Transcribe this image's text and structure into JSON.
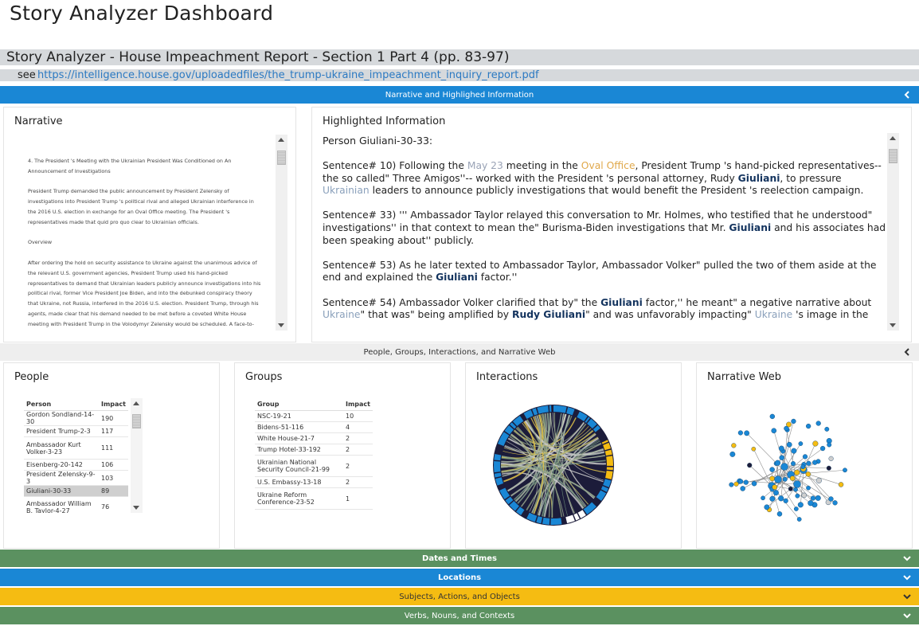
{
  "app": {
    "title": "Story Analyzer Dashboard"
  },
  "story": {
    "title": "Story Analyzer - House Impeachment Report - Section 1 Part 4 (pp. 83-97)",
    "see_label": "see",
    "link": "https://intelligence.house.gov/uploadedfiles/the_trump-ukraine_impeachment_inquiry_report.pdf"
  },
  "sections": {
    "narrative_highlight": "Narrative and Highlighed Information",
    "people_groups": "People, Groups, Interactions, and Narrative Web",
    "dates": "Dates and Times",
    "locations": "Locations",
    "subjects": "Subjects, Actions, and Objects",
    "verbs": "Verbs, Nouns, and Contexts"
  },
  "narrative": {
    "title": "Narrative",
    "paragraphs": [
      "4. The President 's Meeting with the Ukrainian President Was Conditioned on An Announcement of Investigations",
      "President Trump demanded the public announcement by President Zelensky of investigations into President Trump 's political rival and alleged Ukrainian interference in the 2016 U.S. election in exchange for an Oval Office meeting. The President 's representatives made that quid pro quo clear to Ukrainian officials.",
      "Overview",
      "After ordering the hold on security assistance to Ukraine against the unanimous advice of the relevant U.S. government agencies, President Trump used his hand-picked representatives to demand that Ukrainian leaders publicly announce investigations into his political rival, former Vice President Joe Biden, and into the debunked conspiracy theory that Ukraine, not Russia, interfered in the 2016 U.S. election. President Trump, through his agents, made clear that his demand needed to be met before a coveted White House meeting with President Trump in the Volodymyr Zelensky would be scheduled. A face-to-face meeting with President Trump in the"
    ]
  },
  "highlighted": {
    "title": "Highlighted Information",
    "person_line": "Person Giuliani-30-33:",
    "s1": {
      "a": "Sentence# 10) Following the ",
      "date": "May 23",
      "b": " meeting in the ",
      "loc": "Oval Office",
      "c": ", President Trump 's hand-picked representatives-- the so called\" Three Amigos''-- worked with the President 's personal attorney, Rudy ",
      "person": "Giuliani",
      "d": ", to pressure ",
      "grp": "Ukrainian",
      "e": " leaders to announce publicly investigations that would benefit the President 's reelection campaign."
    },
    "s2": {
      "a": "Sentence# 33) ''' Ambassador Taylor relayed this conversation to Mr. Holmes, who testified that he understood\" investigations'' in that context to mean the\" Burisma-Biden investigations that Mr. ",
      "person": "Giuliani",
      "b": " and his associates had been speaking about'' publicly."
    },
    "s3": {
      "a": "Sentence# 53) As he later texted to Ambassador Taylor, Ambassador Volker\" pulled the two of them aside at the end and explained the ",
      "person": "Giuliani",
      "b": " factor.''"
    },
    "s4": {
      "a": "Sentence# 54) Ambassador Volker clarified that by\" the ",
      "person": "Giuliani",
      "b": " factor,'' he meant\" a negative narrative about ",
      "grp": "Ukraine",
      "c": "\" that was\" being amplified by ",
      "person2": "Rudy Giuliani",
      "d": "\" and was unfavorably impacting\" ",
      "grp2": "Ukraine",
      "e": " 's image in the"
    }
  },
  "people": {
    "title": "People",
    "col_person": "Person",
    "col_impact": "Impact",
    "rows": [
      {
        "name": "Gordon Sondland-14-30",
        "impact": "190"
      },
      {
        "name": "President Trump-2-3",
        "impact": "117"
      },
      {
        "name": "Ambassador Kurt Volker-3-23",
        "impact": "111"
      },
      {
        "name": "Eisenberg-20-142",
        "impact": "106"
      },
      {
        "name": "President Zelensky-9-3",
        "impact": "103"
      },
      {
        "name": "Giuliani-30-33",
        "impact": "89"
      },
      {
        "name": "Ambassador William B. Taylor-4-27",
        "impact": "76"
      }
    ]
  },
  "groups": {
    "title": "Groups",
    "col_group": "Group",
    "col_impact": "Impact",
    "rows": [
      {
        "name": "NSC-19-21",
        "impact": "10"
      },
      {
        "name": "Bidens-51-116",
        "impact": "4"
      },
      {
        "name": "White House-21-7",
        "impact": "2"
      },
      {
        "name": "Trump Hotel-33-192",
        "impact": "2"
      },
      {
        "name": "Ukrainian National Security Council-21-99",
        "impact": "2"
      },
      {
        "name": "U.S. Embassy-13-18",
        "impact": "2"
      },
      {
        "name": "Ukraine Reform Conference-23-52",
        "impact": "1"
      }
    ]
  },
  "interactions": {
    "title": "Interactions"
  },
  "web": {
    "title": "Narrative Web"
  },
  "colors": {
    "blue": "#1a87d5",
    "green": "#5b9160",
    "yellow": "#f5bc12",
    "grey": "#eeeeee",
    "dark": "#1c1c3a"
  }
}
